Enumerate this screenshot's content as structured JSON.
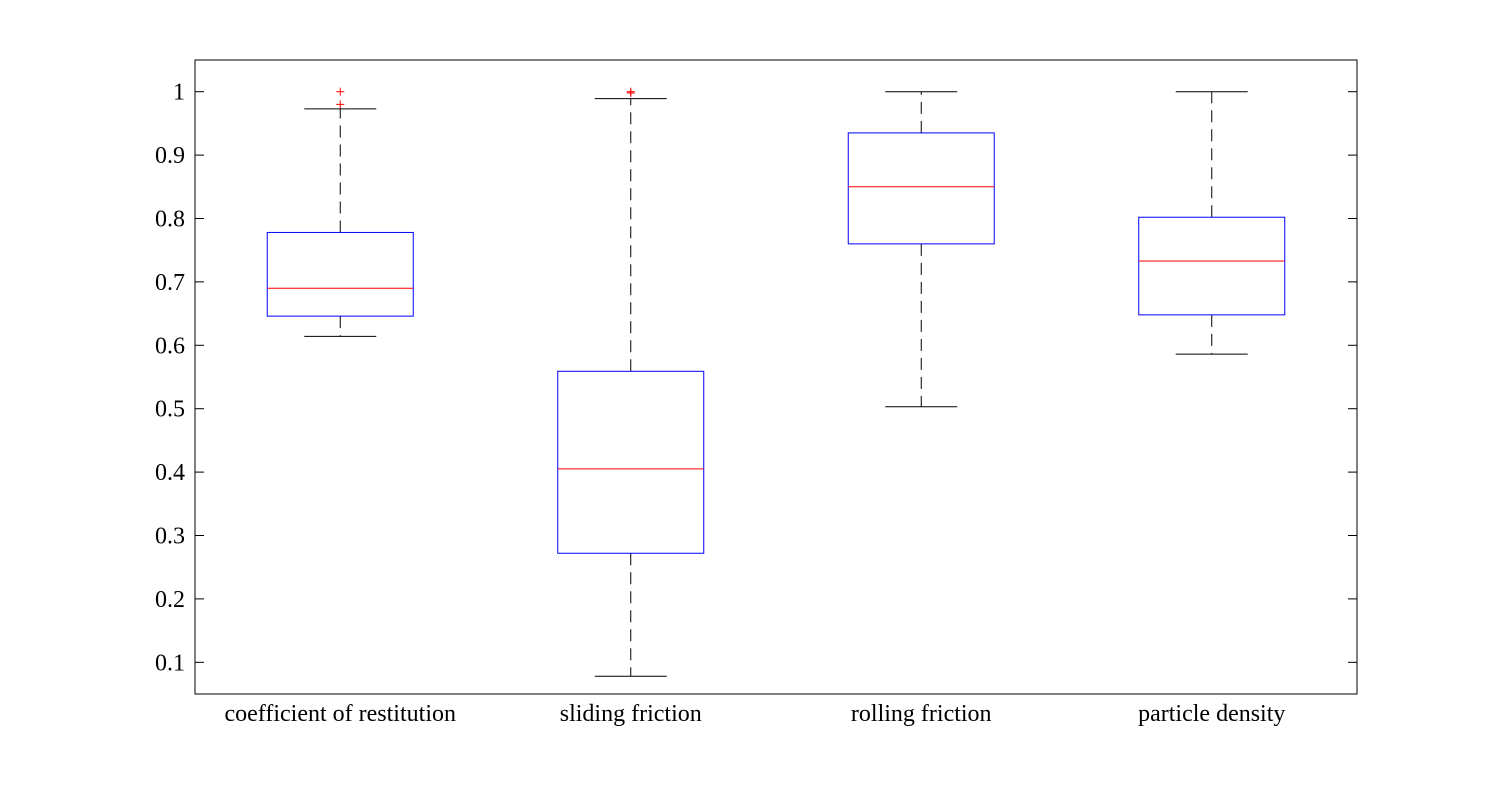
{
  "chart_data": {
    "type": "box",
    "title": "",
    "xlabel": "",
    "ylabel": "",
    "ylim": [
      0.05,
      1.05
    ],
    "yticks": [
      0.1,
      0.2,
      0.3,
      0.4,
      0.5,
      0.6,
      0.7,
      0.8,
      0.9,
      1
    ],
    "ytick_labels": [
      "0.1",
      "0.2",
      "0.3",
      "0.4",
      "0.5",
      "0.6",
      "0.7",
      "0.8",
      "0.9",
      "1"
    ],
    "grid": false,
    "colors": {
      "box": "#0000ff",
      "median": "#ff0000",
      "whisker": "#000000",
      "outlier": "#ff0000",
      "axes": "#000000"
    },
    "categories": [
      "coefficient of restitution",
      "sliding friction",
      "rolling friction",
      "particle density"
    ],
    "boxes": [
      {
        "whisker_low": 0.614,
        "q1": 0.646,
        "median": 0.69,
        "q3": 0.778,
        "whisker_high": 0.973,
        "outliers": [
          0.98,
          1.0
        ]
      },
      {
        "whisker_low": 0.078,
        "q1": 0.272,
        "median": 0.405,
        "q3": 0.559,
        "whisker_high": 0.989,
        "outliers": [
          0.998,
          1.0
        ]
      },
      {
        "whisker_low": 0.503,
        "q1": 0.76,
        "median": 0.85,
        "q3": 0.935,
        "whisker_high": 1.0,
        "outliers": []
      },
      {
        "whisker_low": 0.586,
        "q1": 0.648,
        "median": 0.733,
        "q3": 0.802,
        "whisker_high": 1.0,
        "outliers": []
      }
    ]
  }
}
